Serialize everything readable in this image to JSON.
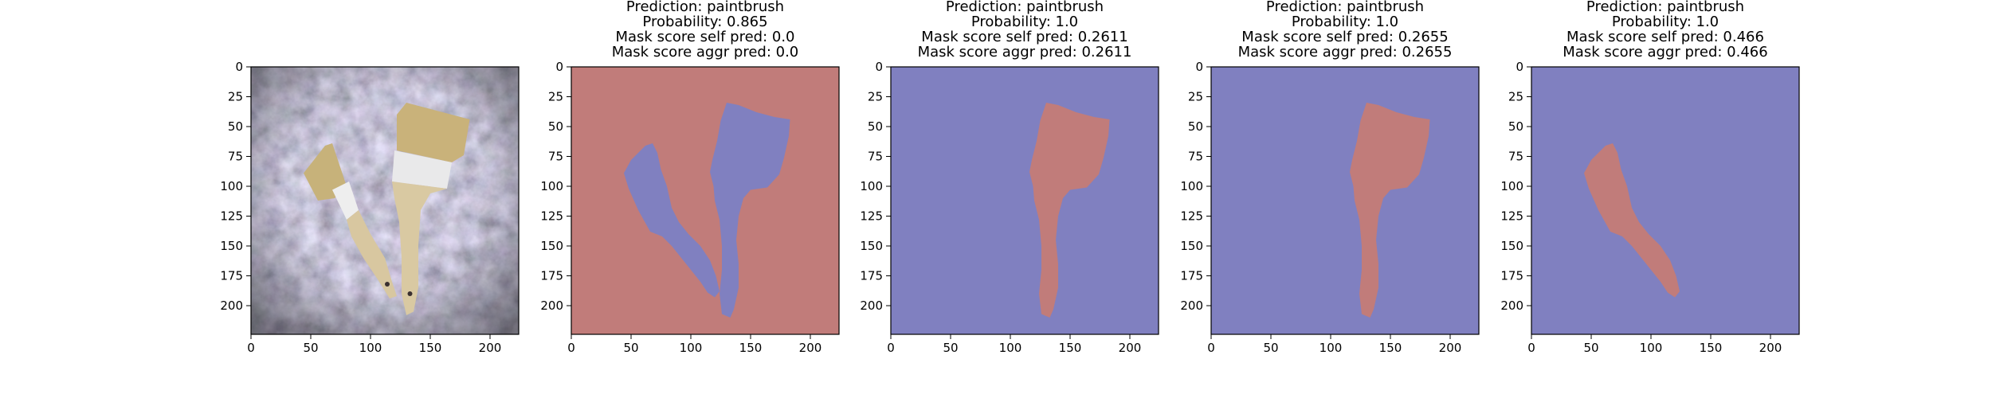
{
  "chart_data": [
    {
      "type": "image",
      "panel": "input-image",
      "title_lines": [],
      "xlim": [
        0,
        224
      ],
      "ylim": [
        224,
        0
      ],
      "xticks": [
        0,
        50,
        100,
        150,
        200
      ],
      "yticks": [
        0,
        25,
        50,
        75,
        100,
        125,
        150,
        175,
        200
      ],
      "image": {
        "background": "#6b6670",
        "brushes": [
          {
            "name": "small brush",
            "bristle_color": "#c7b27a",
            "handle_color": "#d8c7a0"
          },
          {
            "name": "large brush",
            "bristle_color": "#c9b27a",
            "handle_color": "#d9c9a2"
          }
        ]
      }
    },
    {
      "type": "mask",
      "panel": "mask-1",
      "title_lines": [
        "Prediction: paintbrush",
        "Probability: 0.865",
        "Mask score self pred: 0.0",
        "Mask score aggr pred: 0.0"
      ],
      "xlim": [
        0,
        224
      ],
      "ylim": [
        224,
        0
      ],
      "xticks": [
        0,
        50,
        100,
        150,
        200
      ],
      "yticks": [
        0,
        25,
        50,
        75,
        100,
        125,
        150,
        175,
        200
      ],
      "background_color": "#c17c7a",
      "mask_color": "#8080c0",
      "regions": [
        {
          "name": "small-brush",
          "polygon": [
            [
              44,
              89
            ],
            [
              50,
              78
            ],
            [
              62,
              66
            ],
            [
              68,
              64
            ],
            [
              72,
              72
            ],
            [
              75,
              86
            ],
            [
              80,
              100
            ],
            [
              84,
              118
            ],
            [
              90,
              130
            ],
            [
              98,
              140
            ],
            [
              108,
              150
            ],
            [
              116,
              162
            ],
            [
              121,
              175
            ],
            [
              124,
              188
            ],
            [
              120,
              193
            ],
            [
              114,
              189
            ],
            [
              108,
              180
            ],
            [
              100,
              170
            ],
            [
              92,
              160
            ],
            [
              84,
              150
            ],
            [
              76,
              142
            ],
            [
              66,
              138
            ],
            [
              56,
              120
            ],
            [
              48,
              102
            ]
          ]
        },
        {
          "name": "large-brush",
          "polygon": [
            [
              130,
              30
            ],
            [
              140,
              32
            ],
            [
              155,
              38
            ],
            [
              170,
              42
            ],
            [
              183,
              44
            ],
            [
              182,
              58
            ],
            [
              178,
              76
            ],
            [
              174,
              90
            ],
            [
              164,
              101
            ],
            [
              150,
              103
            ],
            [
              144,
              110
            ],
            [
              140,
              125
            ],
            [
              138,
              145
            ],
            [
              140,
              165
            ],
            [
              140,
              185
            ],
            [
              136,
              203
            ],
            [
              133,
              210
            ],
            [
              126,
              207
            ],
            [
              124,
              190
            ],
            [
              126,
              170
            ],
            [
              126,
              150
            ],
            [
              124,
              128
            ],
            [
              120,
              112
            ],
            [
              119,
              100
            ],
            [
              116,
              88
            ],
            [
              118,
              78
            ],
            [
              122,
              62
            ],
            [
              125,
              45
            ]
          ]
        }
      ]
    },
    {
      "type": "mask",
      "panel": "mask-2",
      "title_lines": [
        "Prediction: paintbrush",
        "Probability: 1.0",
        "Mask score self pred: 0.2611",
        "Mask score aggr pred: 0.2611"
      ],
      "xlim": [
        0,
        224
      ],
      "ylim": [
        224,
        0
      ],
      "xticks": [
        0,
        50,
        100,
        150,
        200
      ],
      "yticks": [
        0,
        25,
        50,
        75,
        100,
        125,
        150,
        175,
        200
      ],
      "background_color": "#8080c0",
      "mask_color": "#c17c7a",
      "regions": [
        {
          "name": "large-brush",
          "polygon": [
            [
              130,
              30
            ],
            [
              140,
              32
            ],
            [
              155,
              38
            ],
            [
              170,
              42
            ],
            [
              183,
              44
            ],
            [
              182,
              58
            ],
            [
              178,
              76
            ],
            [
              174,
              90
            ],
            [
              164,
              101
            ],
            [
              150,
              103
            ],
            [
              144,
              110
            ],
            [
              140,
              125
            ],
            [
              138,
              145
            ],
            [
              140,
              165
            ],
            [
              140,
              185
            ],
            [
              136,
              203
            ],
            [
              133,
              210
            ],
            [
              126,
              207
            ],
            [
              124,
              190
            ],
            [
              126,
              170
            ],
            [
              126,
              150
            ],
            [
              124,
              128
            ],
            [
              120,
              112
            ],
            [
              119,
              100
            ],
            [
              116,
              88
            ],
            [
              118,
              78
            ],
            [
              122,
              62
            ],
            [
              125,
              45
            ]
          ]
        }
      ]
    },
    {
      "type": "mask",
      "panel": "mask-3",
      "title_lines": [
        "Prediction: paintbrush",
        "Probability: 1.0",
        "Mask score self pred: 0.2655",
        "Mask score aggr pred: 0.2655"
      ],
      "xlim": [
        0,
        224
      ],
      "ylim": [
        224,
        0
      ],
      "xticks": [
        0,
        50,
        100,
        150,
        200
      ],
      "yticks": [
        0,
        25,
        50,
        75,
        100,
        125,
        150,
        175,
        200
      ],
      "background_color": "#8080c0",
      "mask_color": "#c17c7a",
      "regions": [
        {
          "name": "large-brush",
          "polygon": [
            [
              130,
              30
            ],
            [
              140,
              32
            ],
            [
              155,
              38
            ],
            [
              170,
              42
            ],
            [
              183,
              44
            ],
            [
              182,
              58
            ],
            [
              178,
              76
            ],
            [
              174,
              90
            ],
            [
              164,
              101
            ],
            [
              150,
              103
            ],
            [
              144,
              110
            ],
            [
              140,
              125
            ],
            [
              138,
              145
            ],
            [
              140,
              165
            ],
            [
              140,
              185
            ],
            [
              136,
              203
            ],
            [
              133,
              210
            ],
            [
              126,
              207
            ],
            [
              124,
              190
            ],
            [
              126,
              170
            ],
            [
              126,
              150
            ],
            [
              124,
              128
            ],
            [
              120,
              112
            ],
            [
              119,
              100
            ],
            [
              116,
              88
            ],
            [
              118,
              78
            ],
            [
              122,
              62
            ],
            [
              125,
              45
            ]
          ]
        }
      ]
    },
    {
      "type": "mask",
      "panel": "mask-4",
      "title_lines": [
        "Prediction: paintbrush",
        "Probability: 1.0",
        "Mask score self pred: 0.466",
        "Mask score aggr pred: 0.466"
      ],
      "xlim": [
        0,
        224
      ],
      "ylim": [
        224,
        0
      ],
      "xticks": [
        0,
        50,
        100,
        150,
        200
      ],
      "yticks": [
        0,
        25,
        50,
        75,
        100,
        125,
        150,
        175,
        200
      ],
      "background_color": "#8080c0",
      "mask_color": "#c17c7a",
      "regions": [
        {
          "name": "small-brush",
          "polygon": [
            [
              44,
              89
            ],
            [
              50,
              78
            ],
            [
              62,
              66
            ],
            [
              68,
              64
            ],
            [
              72,
              72
            ],
            [
              75,
              86
            ],
            [
              80,
              100
            ],
            [
              84,
              118
            ],
            [
              90,
              130
            ],
            [
              98,
              140
            ],
            [
              108,
              150
            ],
            [
              116,
              162
            ],
            [
              121,
              175
            ],
            [
              124,
              188
            ],
            [
              120,
              193
            ],
            [
              114,
              189
            ],
            [
              108,
              180
            ],
            [
              100,
              170
            ],
            [
              92,
              160
            ],
            [
              84,
              150
            ],
            [
              76,
              142
            ],
            [
              66,
              138
            ],
            [
              56,
              120
            ],
            [
              48,
              102
            ]
          ]
        }
      ]
    }
  ]
}
